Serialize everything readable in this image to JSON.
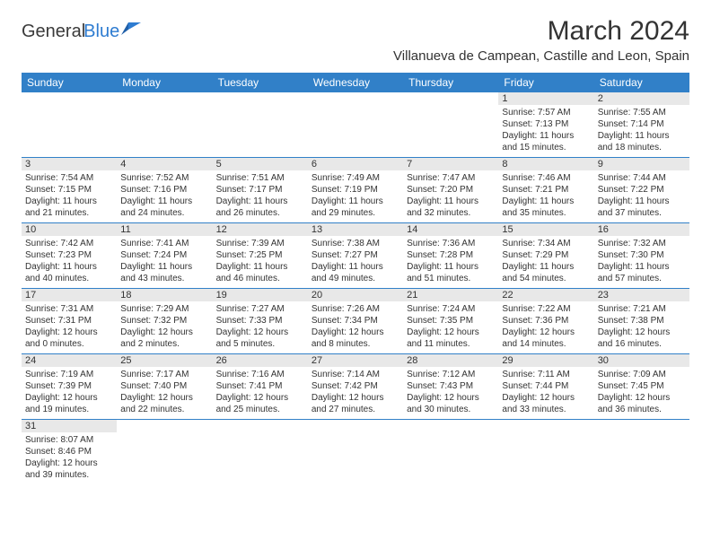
{
  "logo": {
    "text1": "General",
    "text2": "Blue"
  },
  "title": "March 2024",
  "location": "Villanueva de Campean, Castille and Leon, Spain",
  "headers": [
    "Sunday",
    "Monday",
    "Tuesday",
    "Wednesday",
    "Thursday",
    "Friday",
    "Saturday"
  ],
  "colors": {
    "header_bg": "#3180c8",
    "header_fg": "#ffffff",
    "daynum_bg": "#e8e8e8",
    "accent": "#2e7cd1"
  },
  "weeks": [
    [
      null,
      null,
      null,
      null,
      null,
      {
        "n": "1",
        "sr": "7:57 AM",
        "ss": "7:13 PM",
        "dl": "11 hours and 15 minutes."
      },
      {
        "n": "2",
        "sr": "7:55 AM",
        "ss": "7:14 PM",
        "dl": "11 hours and 18 minutes."
      }
    ],
    [
      {
        "n": "3",
        "sr": "7:54 AM",
        "ss": "7:15 PM",
        "dl": "11 hours and 21 minutes."
      },
      {
        "n": "4",
        "sr": "7:52 AM",
        "ss": "7:16 PM",
        "dl": "11 hours and 24 minutes."
      },
      {
        "n": "5",
        "sr": "7:51 AM",
        "ss": "7:17 PM",
        "dl": "11 hours and 26 minutes."
      },
      {
        "n": "6",
        "sr": "7:49 AM",
        "ss": "7:19 PM",
        "dl": "11 hours and 29 minutes."
      },
      {
        "n": "7",
        "sr": "7:47 AM",
        "ss": "7:20 PM",
        "dl": "11 hours and 32 minutes."
      },
      {
        "n": "8",
        "sr": "7:46 AM",
        "ss": "7:21 PM",
        "dl": "11 hours and 35 minutes."
      },
      {
        "n": "9",
        "sr": "7:44 AM",
        "ss": "7:22 PM",
        "dl": "11 hours and 37 minutes."
      }
    ],
    [
      {
        "n": "10",
        "sr": "7:42 AM",
        "ss": "7:23 PM",
        "dl": "11 hours and 40 minutes."
      },
      {
        "n": "11",
        "sr": "7:41 AM",
        "ss": "7:24 PM",
        "dl": "11 hours and 43 minutes."
      },
      {
        "n": "12",
        "sr": "7:39 AM",
        "ss": "7:25 PM",
        "dl": "11 hours and 46 minutes."
      },
      {
        "n": "13",
        "sr": "7:38 AM",
        "ss": "7:27 PM",
        "dl": "11 hours and 49 minutes."
      },
      {
        "n": "14",
        "sr": "7:36 AM",
        "ss": "7:28 PM",
        "dl": "11 hours and 51 minutes."
      },
      {
        "n": "15",
        "sr": "7:34 AM",
        "ss": "7:29 PM",
        "dl": "11 hours and 54 minutes."
      },
      {
        "n": "16",
        "sr": "7:32 AM",
        "ss": "7:30 PM",
        "dl": "11 hours and 57 minutes."
      }
    ],
    [
      {
        "n": "17",
        "sr": "7:31 AM",
        "ss": "7:31 PM",
        "dl": "12 hours and 0 minutes."
      },
      {
        "n": "18",
        "sr": "7:29 AM",
        "ss": "7:32 PM",
        "dl": "12 hours and 2 minutes."
      },
      {
        "n": "19",
        "sr": "7:27 AM",
        "ss": "7:33 PM",
        "dl": "12 hours and 5 minutes."
      },
      {
        "n": "20",
        "sr": "7:26 AM",
        "ss": "7:34 PM",
        "dl": "12 hours and 8 minutes."
      },
      {
        "n": "21",
        "sr": "7:24 AM",
        "ss": "7:35 PM",
        "dl": "12 hours and 11 minutes."
      },
      {
        "n": "22",
        "sr": "7:22 AM",
        "ss": "7:36 PM",
        "dl": "12 hours and 14 minutes."
      },
      {
        "n": "23",
        "sr": "7:21 AM",
        "ss": "7:38 PM",
        "dl": "12 hours and 16 minutes."
      }
    ],
    [
      {
        "n": "24",
        "sr": "7:19 AM",
        "ss": "7:39 PM",
        "dl": "12 hours and 19 minutes."
      },
      {
        "n": "25",
        "sr": "7:17 AM",
        "ss": "7:40 PM",
        "dl": "12 hours and 22 minutes."
      },
      {
        "n": "26",
        "sr": "7:16 AM",
        "ss": "7:41 PM",
        "dl": "12 hours and 25 minutes."
      },
      {
        "n": "27",
        "sr": "7:14 AM",
        "ss": "7:42 PM",
        "dl": "12 hours and 27 minutes."
      },
      {
        "n": "28",
        "sr": "7:12 AM",
        "ss": "7:43 PM",
        "dl": "12 hours and 30 minutes."
      },
      {
        "n": "29",
        "sr": "7:11 AM",
        "ss": "7:44 PM",
        "dl": "12 hours and 33 minutes."
      },
      {
        "n": "30",
        "sr": "7:09 AM",
        "ss": "7:45 PM",
        "dl": "12 hours and 36 minutes."
      }
    ],
    [
      {
        "n": "31",
        "sr": "8:07 AM",
        "ss": "8:46 PM",
        "dl": "12 hours and 39 minutes."
      },
      null,
      null,
      null,
      null,
      null,
      null
    ]
  ],
  "labels": {
    "sunrise": "Sunrise:",
    "sunset": "Sunset:",
    "daylight": "Daylight:"
  }
}
